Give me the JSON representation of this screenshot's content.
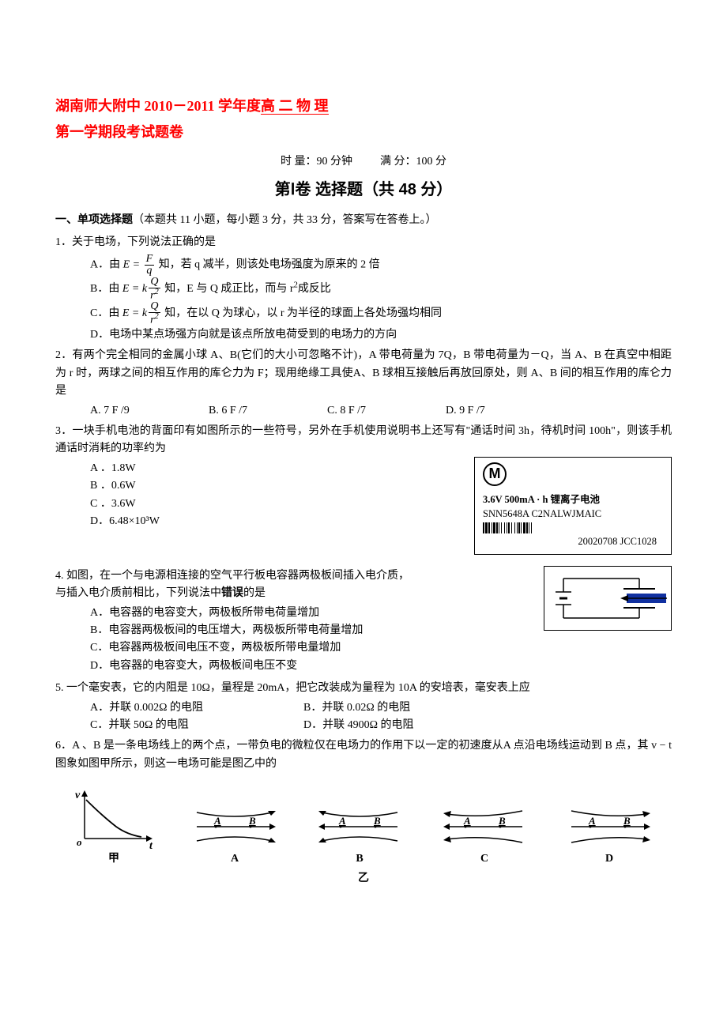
{
  "title": {
    "line1_prefix": "湖南师大附中 2010－2011 学年度",
    "line1_underlined": "高  二  物  理 ",
    "line2": "第一学期段考试题卷"
  },
  "info": {
    "time_label": "时    量：",
    "time_value": "90 分钟",
    "score_label": "满    分：",
    "score_value": "100 分"
  },
  "part1_header": "第Ⅰ卷  选择题（共 48 分）",
  "section1": {
    "label": "一、单项选择题",
    "detail": "（本题共 11 小题，每小题 3 分，共 33 分，答案写在答卷上。）"
  },
  "q1": {
    "stem": "1．关于电场，下列说法正确的是",
    "a_prefix": "A．由",
    "a_eq_lhs": "E = ",
    "a_eq_num": "F",
    "a_eq_den": "q",
    "a_suffix": "知，若 q 减半，则该处电场强度为原来的 2 倍",
    "b_prefix": "B．由",
    "b_eq_lhs": "E = k",
    "b_eq_num": "Q",
    "b_eq_den": "r",
    "b_den_sup": "2",
    "b_suffix": "知，E 与 Q 成正比，而与 r",
    "b_suffix_sup": "2",
    "b_suffix2": "成反比",
    "c_prefix": "C．由",
    "c_suffix": "知，在以 Q 为球心，以 r 为半径的球面上各处场强均相同",
    "d": "D．电场中某点场强方向就是该点所放电荷受到的电场力的方向"
  },
  "q2": {
    "stem": "2．有两个完全相同的金属小球 A、B(它们的大小可忽略不计)，A 带电荷量为 7Q，B 带电荷量为－Q，当 A、B 在真空中相距为 r 时，两球之间的相互作用的库仑力为 F；现用绝缘工具使A、B 球相互接触后再放回原处，则 A、B 间的相互作用的库仑力是",
    "a": "A. 7  F  /9",
    "b": "B. 6  F  /7",
    "c": "C. 8  F  /7",
    "d": "D. 9  F  /7"
  },
  "q3": {
    "stem": "3．一块手机电池的背面印有如图所示的一些符号，另外在手机使用说明书上还写有\"通话时间 3h，待机时间 100h\"，则该手机通话时消耗的功率约为",
    "a": "A ．1.8W",
    "b": "B ．0.6W",
    "c": "C ．3.6W",
    "d": "D．6.48×10³W",
    "battery": {
      "spec": "3.6V   500mA · h 锂离子电池",
      "model": "SNN5648A   C2NALWJMAIC",
      "date": "20020708     JCC1028"
    }
  },
  "q4": {
    "stem1": "4. 如图，在一个与电源相连接的空气平行板电容器两极板间插入电介质，",
    "stem2": "与插入电介质前相比，下列说法中",
    "stem_bold": "错误",
    "stem3": "的是",
    "a": "A．电容器的电容变大，两极板所带电荷量增加",
    "b": "B．电容器两极板间的电压增大，两极板所带电荷量增加",
    "c": "C．电容器两极板间电压不变，两极板所带电量增加",
    "d": "D．电容器的电容变大，两极板间电压不变"
  },
  "q5": {
    "stem": "5. 一个毫安表，它的内阻是 10Ω，量程是 20mA，把它改装成为量程为 10A 的安培表，毫安表上应",
    "a": "A．并联 0.002Ω 的电阻",
    "b": "B．并联 0.02Ω 的电阻",
    "c": "C．并联 50Ω 的电阻",
    "d": "D．并联 4900Ω 的电阻"
  },
  "q6": {
    "stem": "6．A 、B 是一条电场线上的两个点，一带负电的微粒仅在电场力的作用下以一定的初速度从A 点沿电场线运动到 B 点，其 v − t 图象如图甲所示，则这一电场可能是图乙中的",
    "labels": {
      "jia": "甲",
      "a": "A",
      "b": "B",
      "c": "C",
      "d": "D",
      "yi": "乙"
    },
    "graph": {
      "v_label": "v",
      "t_label": "t",
      "o_label": "o"
    }
  },
  "colors": {
    "title": "#ff0000",
    "text": "#000000",
    "bg": "#ffffff"
  }
}
